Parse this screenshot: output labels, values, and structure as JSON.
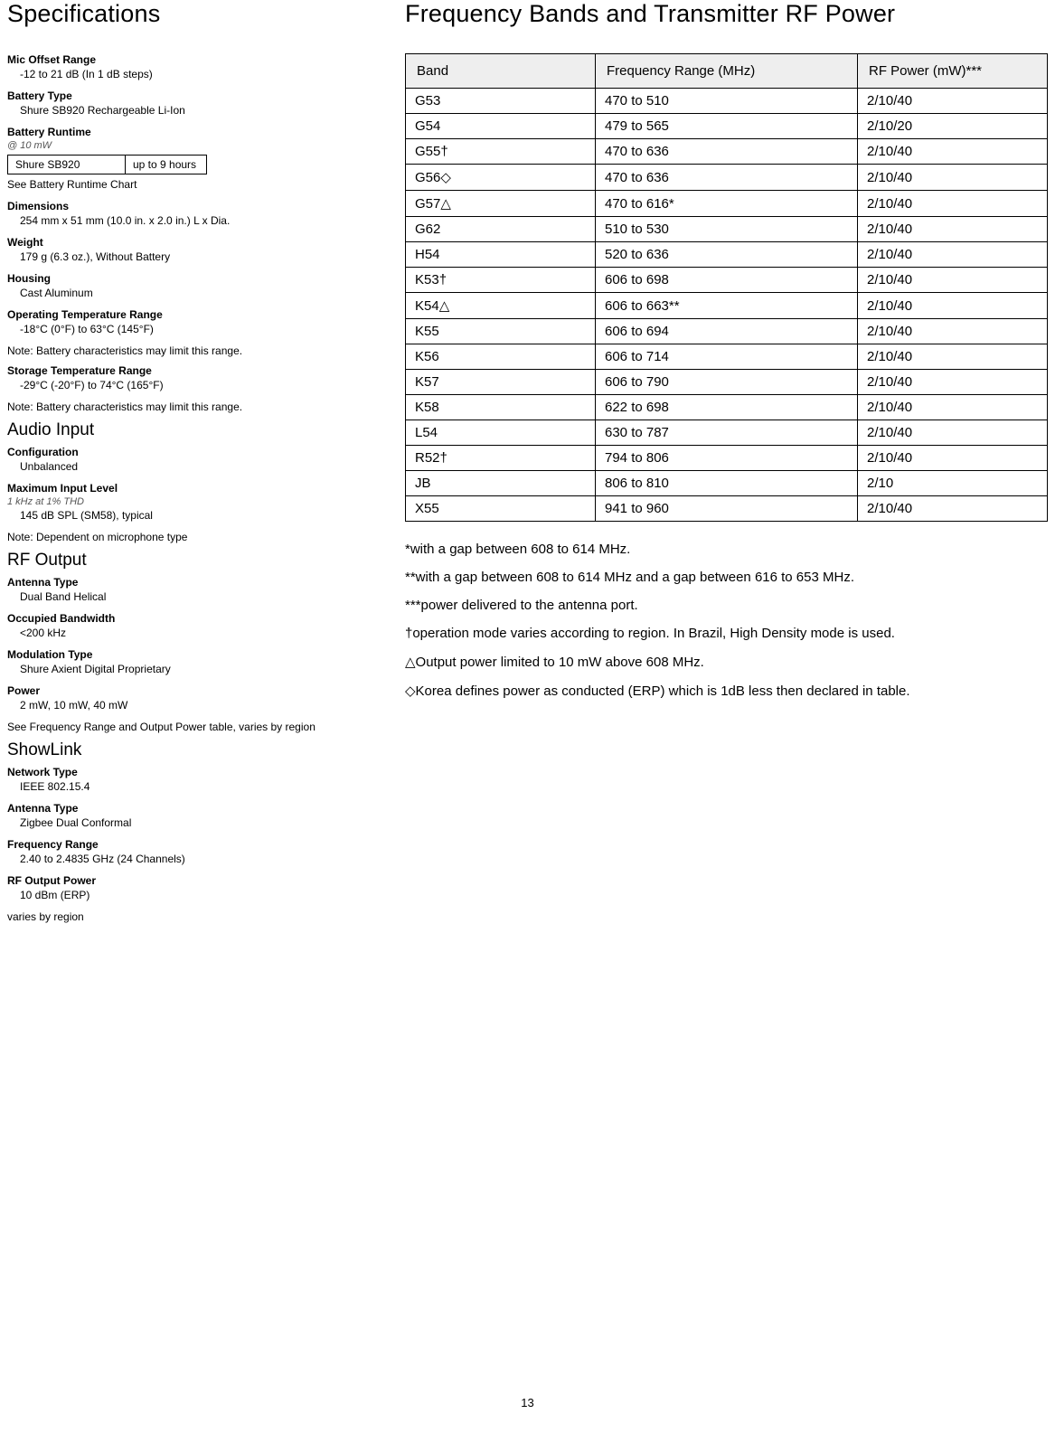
{
  "page_number": "13",
  "left": {
    "title": "Specifications",
    "specs_top": [
      {
        "label": "Mic Offset Range",
        "value": "-12 to 21 dB (In 1 dB steps)"
      },
      {
        "label": "Battery Type",
        "value": "Shure SB920 Rechargeable Li-Ion"
      }
    ],
    "battery_runtime": {
      "label": "Battery Runtime",
      "sub": "@ 10 mW",
      "row": [
        "Shure SB920",
        "up to 9 hours"
      ],
      "note": "See Battery Runtime Chart"
    },
    "specs_mid": [
      {
        "label": "Dimensions",
        "value": "254 mm x 51 mm (10.0 in. x 2.0 in.) L x Dia."
      },
      {
        "label": "Weight",
        "value": "179 g (6.3 oz.), Without Battery"
      },
      {
        "label": "Housing",
        "value": "Cast Aluminum"
      },
      {
        "label": "Operating Temperature Range",
        "value": "-18°C (0°F) to 63°C (145°F)",
        "note": "Note: Battery characteristics may limit this range."
      },
      {
        "label": "Storage Temperature Range",
        "value": "-29°C (-20°F) to 74°C (165°F)",
        "note": "Note: Battery characteristics may limit this range."
      }
    ],
    "audio_input": {
      "title": "Audio Input",
      "items": [
        {
          "label": "Configuration",
          "value": "Unbalanced"
        },
        {
          "label": "Maximum Input Level",
          "sub": "1 kHz at 1% THD",
          "value": "145 dB SPL (SM58), typical",
          "note": "Note: Dependent on microphone type"
        }
      ]
    },
    "rf_output": {
      "title": "RF Output",
      "items": [
        {
          "label": "Antenna Type",
          "value": "Dual Band Helical"
        },
        {
          "label": "Occupied Bandwidth",
          "value": "<200 kHz"
        },
        {
          "label": "Modulation Type",
          "value": "Shure Axient Digital Proprietary"
        },
        {
          "label": "Power",
          "value": "2 mW, 10 mW, 40 mW",
          "note": "See Frequency Range and Output Power table, varies by region"
        }
      ]
    },
    "showlink": {
      "title": "ShowLink",
      "items": [
        {
          "label": "Network Type",
          "value": "IEEE 802.15.4"
        },
        {
          "label": "Antenna Type",
          "value": "Zigbee Dual Conformal"
        },
        {
          "label": "Frequency Range",
          "value": "2.40 to 2.4835 GHz (24  Channels)"
        },
        {
          "label": "RF Output Power",
          "value": "10 dBm (ERP)",
          "note": "varies by region"
        }
      ]
    }
  },
  "right": {
    "title": "Frequency Bands and Transmitter RF Power",
    "table": {
      "headers": [
        "Band",
        "Frequency Range (MHz)",
        "RF Power (mW)***"
      ],
      "rows": [
        [
          "G53",
          "470 to 510",
          "2/10/40"
        ],
        [
          "G54",
          "479 to 565",
          "2/10/20"
        ],
        [
          "G55†",
          "470 to 636",
          "2/10/40"
        ],
        [
          "G56◇",
          "470 to 636",
          "2/10/40"
        ],
        [
          "G57△",
          "470 to 616*",
          "2/10/40"
        ],
        [
          "G62",
          "510 to 530",
          "2/10/40"
        ],
        [
          "H54",
          "520 to 636",
          "2/10/40"
        ],
        [
          "K53†",
          "606 to 698",
          "2/10/40"
        ],
        [
          "K54△",
          "606 to 663**",
          "2/10/40"
        ],
        [
          "K55",
          "606 to 694",
          "2/10/40"
        ],
        [
          "K56",
          "606 to 714",
          "2/10/40"
        ],
        [
          "K57",
          "606 to 790",
          "2/10/40"
        ],
        [
          "K58",
          "622 to 698",
          "2/10/40"
        ],
        [
          "L54",
          "630 to 787",
          "2/10/40"
        ],
        [
          "R52†",
          "794 to 806",
          "2/10/40"
        ],
        [
          "JB",
          "806 to 810",
          "2/10"
        ],
        [
          "X55",
          "941 to 960",
          "2/10/40"
        ]
      ]
    },
    "footnotes": [
      "*with a gap between 608 to 614 MHz.",
      "**with a gap between 608 to 614 MHz and a gap between 616 to 653 MHz.",
      "***power delivered to the antenna port.",
      "†operation mode varies according to region. In Brazil, High Density mode is used.",
      "△Output power limited to 10 mW above 608 MHz.",
      "◇Korea defines power as conducted (ERP) which is 1dB less then declared in table."
    ]
  },
  "style": {
    "background": "#ffffff",
    "text_color": "#000000",
    "table_header_bg": "#eeeeee",
    "border_color": "#000000",
    "h1_fontsize": 27,
    "h2_fontsize": 19,
    "body_fontsize": 12,
    "table_fontsize": 15
  }
}
